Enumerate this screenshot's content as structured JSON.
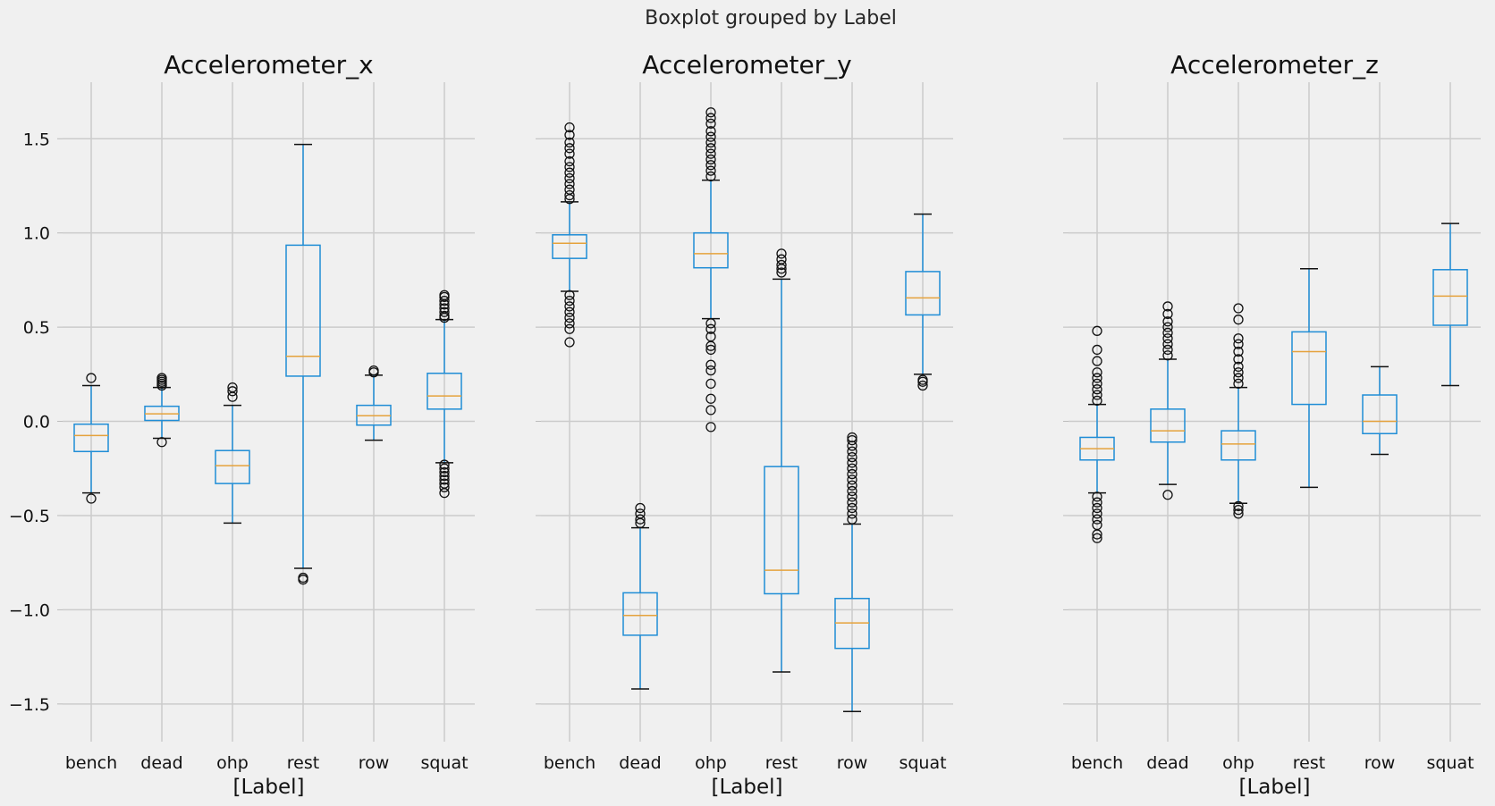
{
  "chart_data": {
    "type": "boxplot",
    "suptitle": "Boxplot grouped by Label",
    "xlabel": "[Label]",
    "ylim": [
      -1.7,
      1.8
    ],
    "yticks": [
      -1.5,
      -1.0,
      -0.5,
      0.0,
      0.5,
      1.0,
      1.5
    ],
    "ytick_labels": [
      "−1.5",
      "−1.0",
      "−0.5",
      "0.0",
      "0.5",
      "1.0",
      "1.5"
    ],
    "categories": [
      "bench",
      "dead",
      "ohp",
      "rest",
      "row",
      "squat"
    ],
    "grid": true,
    "colors": {
      "box": "#1f8dd6",
      "median": "#e5a23c",
      "grid": "#cbcbcb",
      "background": "#f0f0f0"
    },
    "panels": [
      {
        "title": "Accelerometer_x",
        "boxes": [
          {
            "label": "bench",
            "whislo": -0.38,
            "q1": -0.16,
            "med": -0.075,
            "q3": -0.015,
            "whishi": 0.19,
            "fliers": [
              0.23,
              -0.41
            ]
          },
          {
            "label": "dead",
            "whislo": -0.09,
            "q1": 0.005,
            "med": 0.04,
            "q3": 0.08,
            "whishi": 0.18,
            "fliers": [
              0.19,
              0.2,
              0.21,
              0.22,
              0.23,
              -0.11
            ]
          },
          {
            "label": "ohp",
            "whislo": -0.54,
            "q1": -0.33,
            "med": -0.235,
            "q3": -0.155,
            "whishi": 0.085,
            "fliers": [
              0.13,
              0.16,
              0.18
            ]
          },
          {
            "label": "rest",
            "whislo": -0.78,
            "q1": 0.24,
            "med": 0.345,
            "q3": 0.935,
            "whishi": 1.47,
            "fliers": [
              -0.83,
              -0.84
            ]
          },
          {
            "label": "row",
            "whislo": -0.1,
            "q1": -0.02,
            "med": 0.03,
            "q3": 0.085,
            "whishi": 0.245,
            "fliers": [
              0.26,
              0.27
            ]
          },
          {
            "label": "squat",
            "whislo": -0.22,
            "q1": 0.065,
            "med": 0.135,
            "q3": 0.255,
            "whishi": 0.54,
            "fliers": [
              0.55,
              0.56,
              0.58,
              0.6,
              0.62,
              0.64,
              0.66,
              0.67,
              -0.23,
              -0.25,
              -0.27,
              -0.29,
              -0.31,
              -0.33,
              -0.35,
              -0.38
            ]
          }
        ]
      },
      {
        "title": "Accelerometer_y",
        "boxes": [
          {
            "label": "bench",
            "whislo": 0.69,
            "q1": 0.865,
            "med": 0.945,
            "q3": 0.99,
            "whishi": 1.165,
            "fliers": [
              1.18,
              1.2,
              1.23,
              1.26,
              1.29,
              1.32,
              1.35,
              1.38,
              1.42,
              1.45,
              1.48,
              1.52,
              1.56,
              0.67,
              0.64,
              0.61,
              0.58,
              0.55,
              0.52,
              0.49,
              0.42
            ]
          },
          {
            "label": "dead",
            "whislo": -1.42,
            "q1": -1.135,
            "med": -1.03,
            "q3": -0.91,
            "whishi": -0.565,
            "fliers": [
              -0.54,
              -0.52,
              -0.49,
              -0.46
            ]
          },
          {
            "label": "ohp",
            "whislo": 0.545,
            "q1": 0.815,
            "med": 0.89,
            "q3": 1.0,
            "whishi": 1.28,
            "fliers": [
              1.3,
              1.33,
              1.36,
              1.39,
              1.42,
              1.45,
              1.48,
              1.51,
              1.54,
              1.58,
              1.61,
              1.64,
              0.52,
              0.49,
              0.45,
              0.4,
              0.38,
              0.3,
              0.27,
              0.2,
              0.12,
              0.06,
              -0.03
            ]
          },
          {
            "label": "rest",
            "whislo": -1.33,
            "q1": -0.915,
            "med": -0.79,
            "q3": -0.24,
            "whishi": 0.755,
            "fliers": [
              0.79,
              0.81,
              0.83,
              0.86,
              0.89
            ]
          },
          {
            "label": "row",
            "whislo": -1.54,
            "q1": -1.205,
            "med": -1.07,
            "q3": -0.94,
            "whishi": -0.545,
            "fliers": [
              -0.52,
              -0.49,
              -0.46,
              -0.43,
              -0.4,
              -0.37,
              -0.34,
              -0.31,
              -0.28,
              -0.25,
              -0.22,
              -0.19,
              -0.16,
              -0.13,
              -0.1,
              -0.085
            ]
          },
          {
            "label": "squat",
            "whislo": 0.25,
            "q1": 0.565,
            "med": 0.655,
            "q3": 0.795,
            "whishi": 1.1,
            "fliers": [
              0.22,
              0.21,
              0.19
            ]
          }
        ]
      },
      {
        "title": "Accelerometer_z",
        "boxes": [
          {
            "label": "bench",
            "whislo": -0.38,
            "q1": -0.205,
            "med": -0.145,
            "q3": -0.085,
            "whishi": 0.09,
            "fliers": [
              0.11,
              0.14,
              0.17,
              0.2,
              0.23,
              0.26,
              0.32,
              0.38,
              0.48,
              -0.4,
              -0.43,
              -0.46,
              -0.49,
              -0.52,
              -0.55,
              -0.6,
              -0.62
            ]
          },
          {
            "label": "dead",
            "whislo": -0.335,
            "q1": -0.11,
            "med": -0.05,
            "q3": 0.065,
            "whishi": 0.33,
            "fliers": [
              0.35,
              0.38,
              0.41,
              0.44,
              0.47,
              0.5,
              0.53,
              0.57,
              0.61,
              -0.39
            ]
          },
          {
            "label": "ohp",
            "whislo": -0.435,
            "q1": -0.205,
            "med": -0.12,
            "q3": -0.05,
            "whishi": 0.18,
            "fliers": [
              0.2,
              0.23,
              0.26,
              0.29,
              0.33,
              0.37,
              0.41,
              0.44,
              0.54,
              0.6,
              -0.45,
              -0.47,
              -0.49
            ]
          },
          {
            "label": "rest",
            "whislo": -0.35,
            "q1": 0.09,
            "med": 0.37,
            "q3": 0.475,
            "whishi": 0.81,
            "fliers": []
          },
          {
            "label": "row",
            "whislo": -0.175,
            "q1": -0.065,
            "med": 0.0,
            "q3": 0.14,
            "whishi": 0.29,
            "fliers": []
          },
          {
            "label": "squat",
            "whislo": 0.19,
            "q1": 0.51,
            "med": 0.665,
            "q3": 0.805,
            "whishi": 1.05,
            "fliers": []
          }
        ]
      }
    ]
  }
}
